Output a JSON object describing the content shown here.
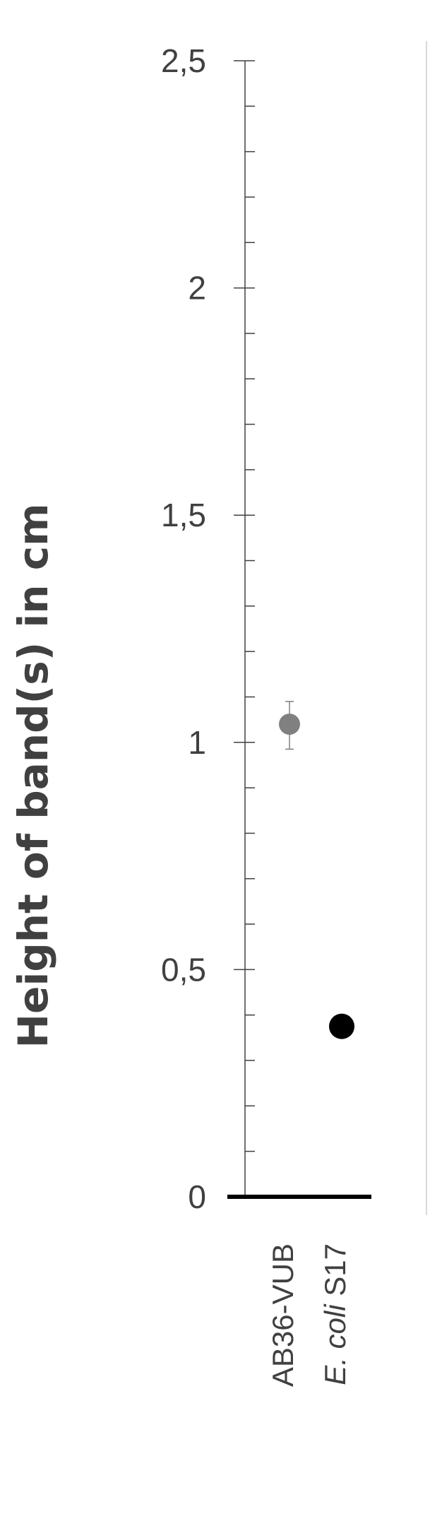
{
  "chart_data": {
    "type": "scatter",
    "title": "",
    "xlabel": "",
    "ylabel": "Height of band(s) in cm",
    "ylim": [
      0,
      2.5
    ],
    "yticks": [
      "0",
      "0,5",
      "1",
      "1,5",
      "2",
      "2,5"
    ],
    "ytick_values": [
      0,
      0.5,
      1,
      1.5,
      2,
      2.5
    ],
    "minor_tick_step": 0.1,
    "grid": false,
    "legend": "none",
    "categories": [
      {
        "plain": "AB36-VUB",
        "italic": "",
        "rest": ""
      },
      {
        "plain": "",
        "italic": "E. coli",
        "rest": " S17"
      }
    ],
    "points": [
      {
        "y": 1.04,
        "err_low": 0.055,
        "err_high": 0.05,
        "color": "#808080"
      },
      {
        "y": 0.375,
        "err_low": 0.02,
        "err_high": 0.02,
        "color": "#000000"
      }
    ],
    "colors": {
      "axis": "#404040",
      "baseline": "#000000",
      "text": "#404040",
      "border": "#d9d9d9"
    }
  }
}
